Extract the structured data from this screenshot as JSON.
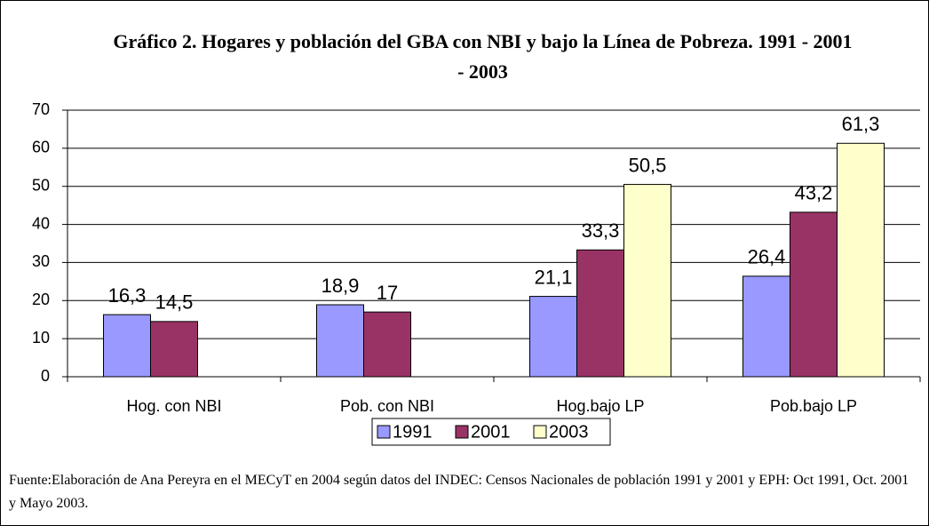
{
  "chart_data": {
    "type": "bar",
    "title": "Gráfico 2. Hogares y población del GBA con NBI y bajo la Línea de Pobreza. 1991 - 2001 - 2003",
    "categories": [
      "Hog. con NBI",
      "Pob. con NBI",
      "Hog.bajo LP",
      "Pob.bajo LP"
    ],
    "series": [
      {
        "name": "1991",
        "color": "#9999ff",
        "values": [
          16.3,
          18.9,
          21.1,
          26.4
        ],
        "value_labels": [
          "16,3",
          "18,9",
          "21,1",
          "26,4"
        ]
      },
      {
        "name": "2001",
        "color": "#993366",
        "values": [
          14.5,
          17,
          33.3,
          43.2
        ],
        "value_labels": [
          "14,5",
          "17",
          "33,3",
          "43,2"
        ]
      },
      {
        "name": "2003",
        "color": "#ffffcc",
        "values": [
          null,
          null,
          50.5,
          61.3
        ],
        "value_labels": [
          null,
          null,
          "50,5",
          "61,3"
        ]
      }
    ],
    "ylim": [
      0,
      70
    ],
    "yticks": [
      0,
      10,
      20,
      30,
      40,
      50,
      60,
      70
    ],
    "grid": true,
    "legend": "bottom",
    "note": "Fuente:Elaboración de Ana Pereyra en el MECyT en 2004 según datos del INDEC: Censos Nacionales de población 1991 y 2001 y EPH: Oct 1991, Oct. 2001 y Mayo 2003."
  }
}
